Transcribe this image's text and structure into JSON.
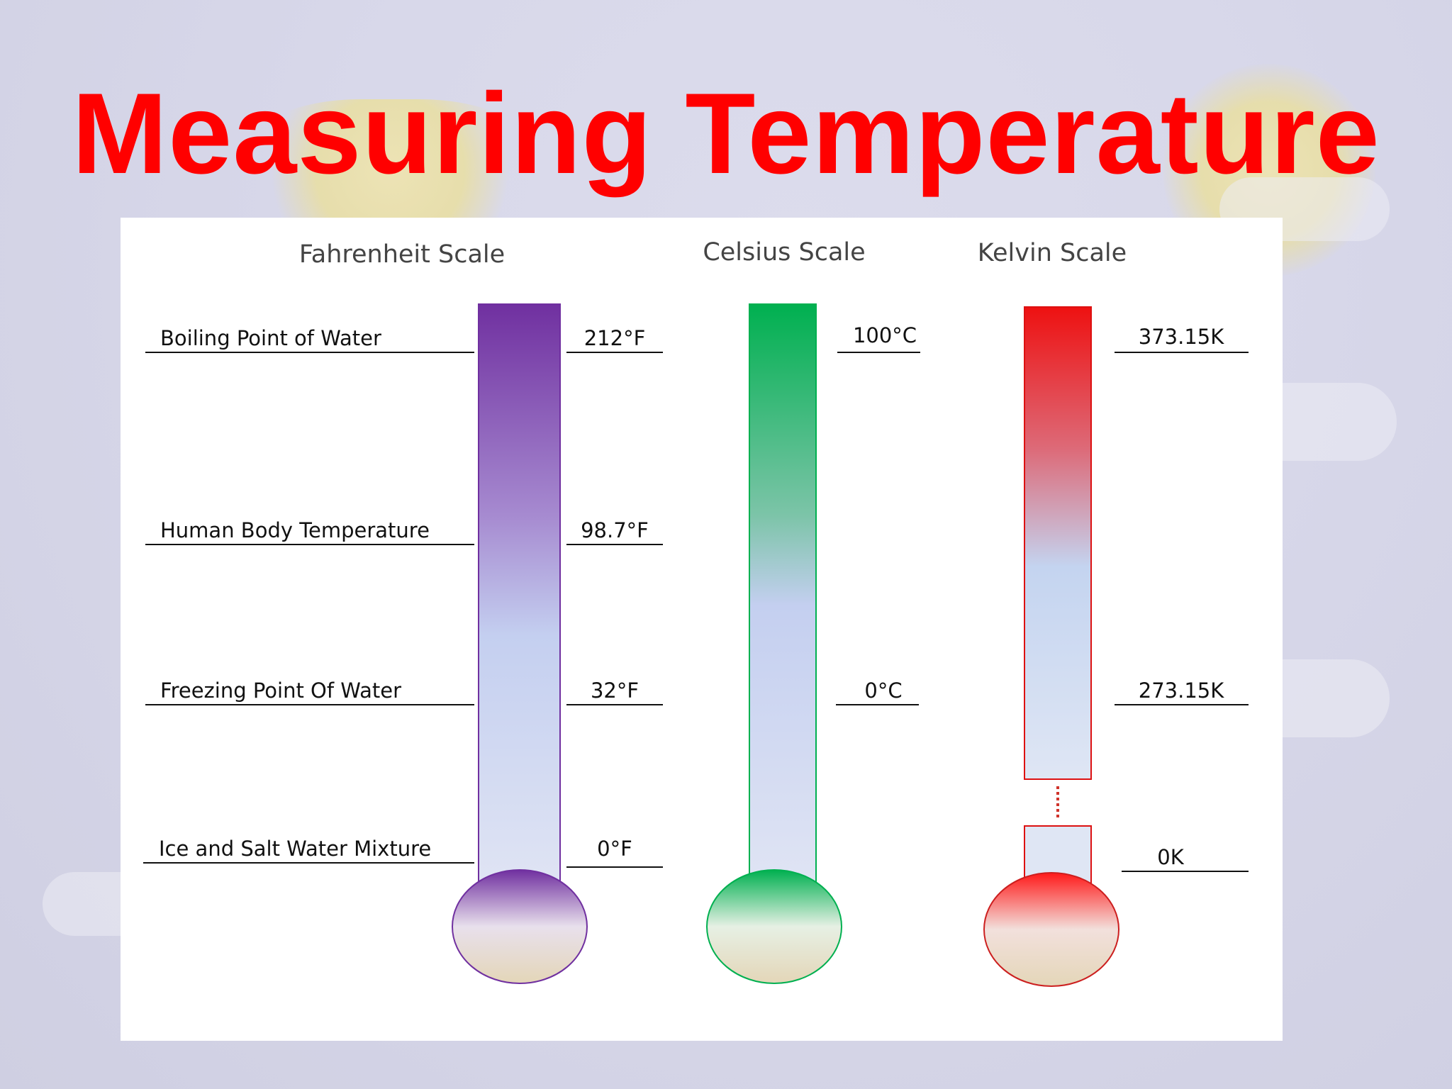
{
  "slide": {
    "title": "Measuring Temperature"
  },
  "diagram": {
    "scales": [
      {
        "id": "fahrenheit",
        "title": "Fahrenheit Scale",
        "color": "#7030a0"
      },
      {
        "id": "celsius",
        "title": "Celsius Scale",
        "color": "#00b050"
      },
      {
        "id": "kelvin",
        "title": "Kelvin Scale",
        "color": "#ff0000"
      }
    ],
    "reference_points": [
      {
        "label": "Boiling Point of Water",
        "fahrenheit": "212°F",
        "celsius": "100°C",
        "kelvin": "373.15K"
      },
      {
        "label": "Human Body Temperature",
        "fahrenheit": "98.7°F"
      },
      {
        "label": "Freezing Point Of Water",
        "fahrenheit": "32°F",
        "celsius": "0°C",
        "kelvin": "273.15K"
      },
      {
        "label": "Ice and Salt Water Mixture",
        "fahrenheit": "0°F"
      }
    ],
    "kelvin_zero": "0K"
  }
}
